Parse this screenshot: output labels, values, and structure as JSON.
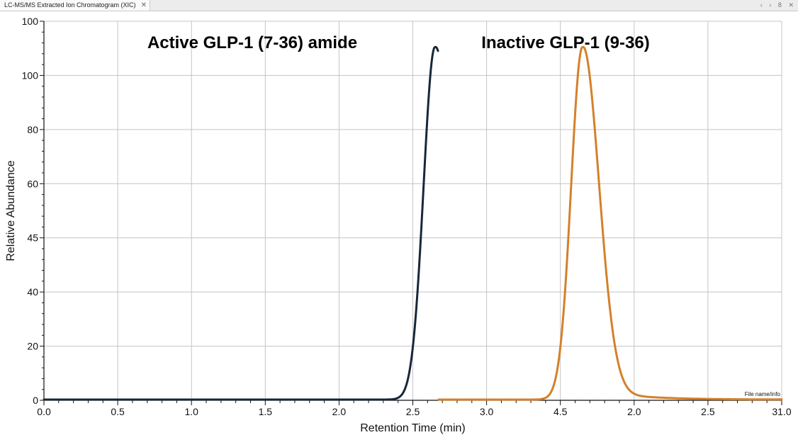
{
  "window": {
    "tab_title": "LC-MS/MS Extracted Ion Chromatogram (XIC)",
    "tab_close_glyph": "✕",
    "controls": [
      "‹",
      "›",
      "8",
      "✕"
    ]
  },
  "chart_data": {
    "type": "line",
    "xlabel": "Retention Time (min)",
    "ylabel": "Relative Abundance",
    "x_tick_labels": [
      "0.0",
      "0.5",
      "1.0",
      "1.5",
      "2.0",
      "2.5",
      "3.0",
      "4.5",
      "2.0",
      "2.5",
      "31.0"
    ],
    "y_tick_labels": [
      "0",
      "20",
      "40",
      "45",
      "60",
      "80",
      "100",
      "100"
    ],
    "grid": true,
    "annotations": [
      {
        "text": "Active GLP-1 (7-36) amide",
        "series": "active"
      },
      {
        "text": "Inactive GLP-1 (9-36)",
        "series": "inactive"
      }
    ],
    "file_info_label": "File name/info",
    "series": [
      {
        "key": "active",
        "color": "#16273a",
        "peak_at_tick": 5.3,
        "peak_height_fraction": 0.93,
        "start_tick": 0.0,
        "end_tick": 5.35
      },
      {
        "key": "inactive",
        "color": "#d4802a",
        "peak_at_tick": 7.3,
        "peak_height_fraction": 0.93,
        "start_tick": 5.35,
        "end_tick": 10.0
      }
    ]
  }
}
